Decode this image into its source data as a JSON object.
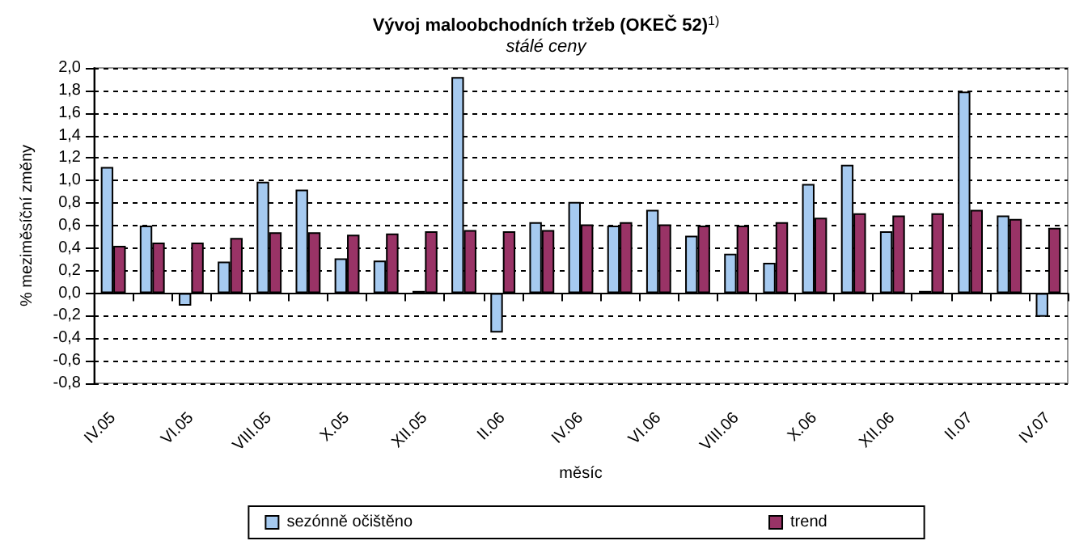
{
  "chart_data": {
    "type": "bar",
    "title": "Vývoj maloobchodních tržeb (OKEČ 52)$^{1)}$",
    "subtitle": "stálé ceny",
    "xlabel": "měsíc",
    "ylabel": "% meziměsíční změny",
    "categories": [
      "IV.05",
      null,
      "VI.05",
      null,
      "VIII.05",
      null,
      "X.05",
      null,
      "XII.05",
      null,
      "II.06",
      null,
      "IV.06",
      null,
      "VI.06",
      null,
      "VIII.06",
      null,
      "X.06",
      null,
      "XII.06",
      null,
      "II.07",
      null,
      "IV.07"
    ],
    "series": [
      {
        "name": "sezónně očištěno",
        "color": "#a6caf0",
        "values": [
          1.12,
          0.6,
          -0.11,
          0.28,
          0.99,
          0.92,
          0.31,
          0.29,
          0.02,
          1.92,
          -0.35,
          0.63,
          0.81,
          0.6,
          0.74,
          0.51,
          0.35,
          0.27,
          0.97,
          1.14,
          0.55,
          0.02,
          1.79,
          0.69,
          -0.21
        ]
      },
      {
        "name": "trend",
        "color": "#993366",
        "values": [
          0.42,
          0.45,
          0.45,
          0.49,
          0.54,
          0.54,
          0.52,
          0.53,
          0.55,
          0.56,
          0.55,
          0.56,
          0.61,
          0.63,
          0.61,
          0.6,
          0.6,
          0.63,
          0.67,
          0.71,
          0.69,
          0.71,
          0.74,
          0.66,
          0.58
        ]
      }
    ],
    "ylim": [
      -0.8,
      2.0
    ],
    "yticks": [
      {
        "value": -0.8,
        "label": "-0,8"
      },
      {
        "value": -0.6,
        "label": "-0,6"
      },
      {
        "value": -0.4,
        "label": "-0,4"
      },
      {
        "value": -0.2,
        "label": "-0,2"
      },
      {
        "value": 0,
        "label": "0,0"
      },
      {
        "value": 0.2,
        "label": "0,2"
      },
      {
        "value": 0.4,
        "label": "0,4"
      },
      {
        "value": 0.6,
        "label": "0,6"
      },
      {
        "value": 0.8,
        "label": "0,8"
      },
      {
        "value": 1.0,
        "label": "1,0"
      },
      {
        "value": 1.2,
        "label": "1,2"
      },
      {
        "value": 1.4,
        "label": "1,4"
      },
      {
        "value": 1.6,
        "label": "1,6"
      },
      {
        "value": 1.8,
        "label": "1,8"
      },
      {
        "value": 2.0,
        "label": "2,0"
      }
    ],
    "grid": "y",
    "legend": "bottom"
  }
}
